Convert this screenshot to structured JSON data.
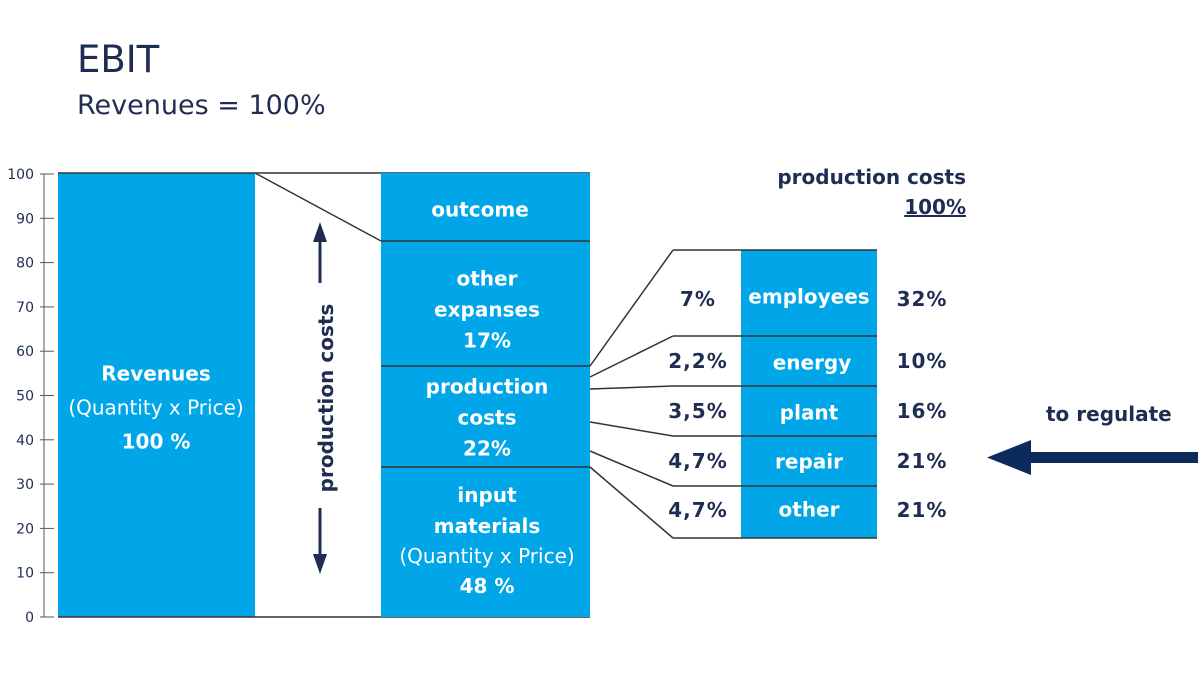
{
  "title": "EBIT",
  "subtitle": "Revenues = 100%",
  "axis": {
    "ticks": [
      "100",
      "90",
      "80",
      "70",
      "60",
      "50",
      "40",
      "30",
      "20",
      "10",
      "0"
    ]
  },
  "revenues_bar": {
    "label": "Revenues",
    "sublabel": "(Quantity x Price)",
    "value": "100 %"
  },
  "vertical_label": "production costs",
  "stack": {
    "outcome": {
      "label": "outcome"
    },
    "other_expenses": {
      "line1": "other",
      "line2": "expanses",
      "value": "17%"
    },
    "production_costs": {
      "line1": "production",
      "line2": "costs",
      "value": "22%"
    },
    "input_materials": {
      "line1": "input",
      "line2": "materials",
      "sublabel": "(Quantity x Price)",
      "value": "48 %"
    }
  },
  "breakdown_header": {
    "line1": "production costs",
    "line2": "100%"
  },
  "breakdown": [
    {
      "left": "7%",
      "label": "employees",
      "right": "32%"
    },
    {
      "left": "2,2%",
      "label": "energy",
      "right": "10%"
    },
    {
      "left": "3,5%",
      "label": "plant",
      "right": "16%"
    },
    {
      "left": "4,7%",
      "label": "repair",
      "right": "21%"
    },
    {
      "left": "4,7%",
      "label": "other",
      "right": "21%"
    }
  ],
  "callout": {
    "label": "to regulate"
  },
  "colors": {
    "bar": "#00a6e8",
    "text": "#1f2d52",
    "line": "#333333"
  }
}
